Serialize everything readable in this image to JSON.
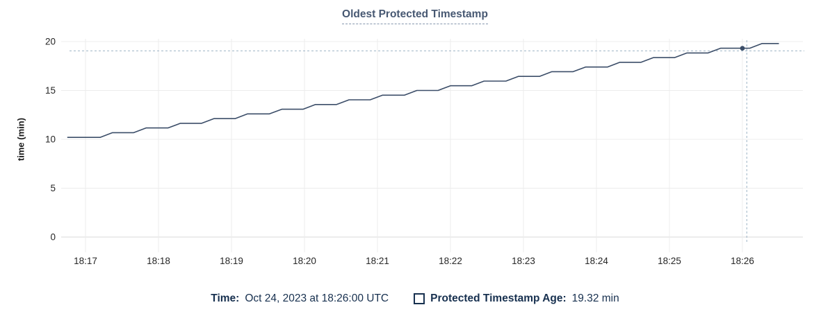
{
  "chart": {
    "title": "Oldest Protected Timestamp",
    "ylabel": "time (min)"
  },
  "legend": {
    "time_label": "Time:",
    "time_value": "Oct 24, 2023 at 18:26:00 UTC",
    "series_label": "Protected Timestamp Age:",
    "series_value": "19.32 min"
  },
  "chart_data": {
    "type": "line",
    "title": "Oldest Protected Timestamp",
    "xlabel": "",
    "ylabel": "time (min)",
    "x_ticks": [
      "18:17",
      "18:18",
      "18:19",
      "18:20",
      "18:21",
      "18:22",
      "18:23",
      "18:24",
      "18:25",
      "18:26"
    ],
    "y_ticks": [
      0,
      5,
      10,
      15,
      20
    ],
    "ylim": [
      0,
      20
    ],
    "grid": true,
    "legend_position": "bottom",
    "x_unit": "minutes_after_18:17",
    "series": [
      {
        "name": "Protected Timestamp Age",
        "unit": "min",
        "points": [
          [
            -0.25,
            10.2
          ],
          [
            0.2,
            10.2
          ],
          [
            0.37,
            10.68
          ],
          [
            0.66,
            10.68
          ],
          [
            0.83,
            11.16
          ],
          [
            1.13,
            11.16
          ],
          [
            1.3,
            11.64
          ],
          [
            1.59,
            11.64
          ],
          [
            1.76,
            12.12
          ],
          [
            2.05,
            12.12
          ],
          [
            2.22,
            12.6
          ],
          [
            2.52,
            12.6
          ],
          [
            2.69,
            13.08
          ],
          [
            2.98,
            13.08
          ],
          [
            3.15,
            13.56
          ],
          [
            3.44,
            13.56
          ],
          [
            3.61,
            14.04
          ],
          [
            3.9,
            14.04
          ],
          [
            4.07,
            14.52
          ],
          [
            4.37,
            14.52
          ],
          [
            4.54,
            15.0
          ],
          [
            4.83,
            15.0
          ],
          [
            5.0,
            15.48
          ],
          [
            5.29,
            15.48
          ],
          [
            5.46,
            15.96
          ],
          [
            5.76,
            15.96
          ],
          [
            5.93,
            16.44
          ],
          [
            6.22,
            16.44
          ],
          [
            6.39,
            16.92
          ],
          [
            6.68,
            16.92
          ],
          [
            6.85,
            17.4
          ],
          [
            7.15,
            17.4
          ],
          [
            7.32,
            17.88
          ],
          [
            7.61,
            17.88
          ],
          [
            7.78,
            18.36
          ],
          [
            8.07,
            18.36
          ],
          [
            8.24,
            18.84
          ],
          [
            8.53,
            18.84
          ],
          [
            8.7,
            19.32
          ],
          [
            9.1,
            19.32
          ],
          [
            9.27,
            19.8
          ],
          [
            9.5,
            19.8
          ]
        ]
      }
    ],
    "hover": {
      "time": "Oct 24, 2023 at 18:26:00 UTC",
      "value_min": 19.32,
      "point": [
        9.0,
        19.32
      ],
      "crosshair_x_t": 9.06,
      "crosshair_y_value": 19.05
    },
    "colors": {
      "line": "#3b4d68",
      "grid": "#ececec",
      "axis_line": "#d9d9d9",
      "crosshair": "#9db2c5",
      "tick_text": "#262626",
      "title": "#475872",
      "legend_text": "#17304f"
    }
  }
}
